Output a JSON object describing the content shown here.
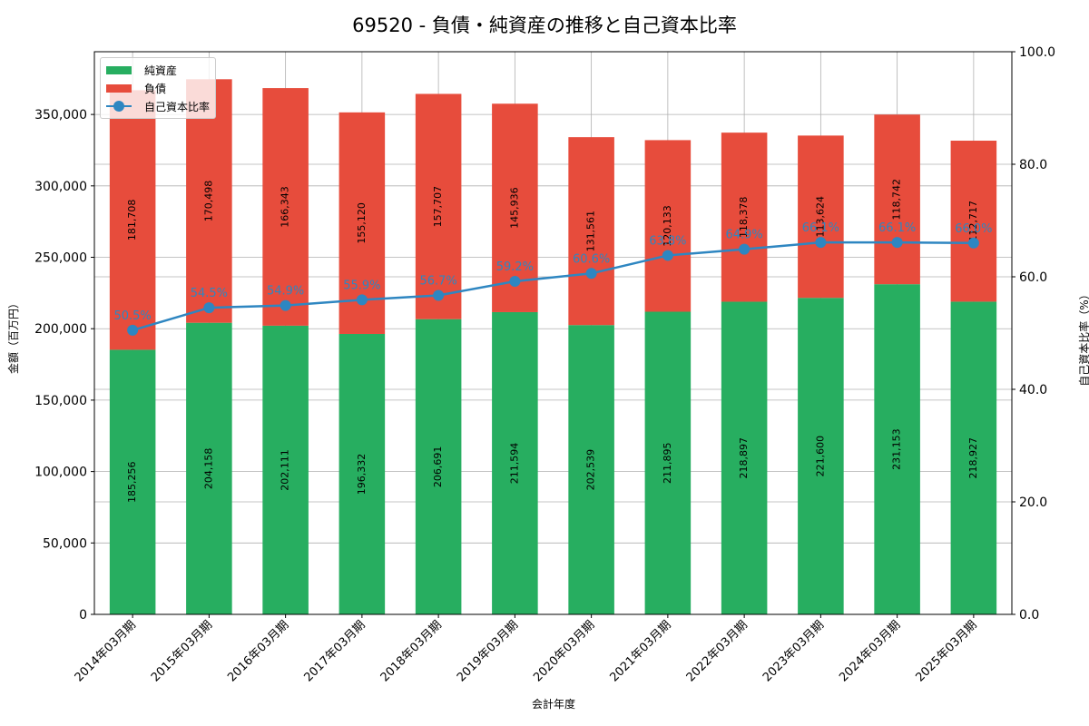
{
  "title": "69520 - 負債・純資産の推移と自己資本比率",
  "chart_data": {
    "type": "bar",
    "stacked": true,
    "title": "69520 - 負債・純資産の推移と自己資本比率",
    "xlabel": "会計年度",
    "ylabel": "金額（百万円）",
    "ylabel_right": "自己資本比率（%）",
    "ylim": [
      0,
      393918
    ],
    "ylim_right": [
      0,
      100
    ],
    "yticks": [
      0,
      50000,
      100000,
      150000,
      200000,
      250000,
      300000,
      350000
    ],
    "ytick_labels": [
      "0",
      "50,000",
      "100,000",
      "150,000",
      "200,000",
      "250,000",
      "300,000",
      "350,000"
    ],
    "yticks_right": [
      0,
      20,
      40,
      60,
      80,
      100
    ],
    "ytick_labels_right": [
      "0.0",
      "20.0",
      "40.0",
      "60.0",
      "80.0",
      "100.0"
    ],
    "grid": true,
    "legend_position": "upper left",
    "categories": [
      "2014年03月期",
      "2015年03月期",
      "2016年03月期",
      "2017年03月期",
      "2018年03月期",
      "2019年03月期",
      "2020年03月期",
      "2021年03月期",
      "2022年03月期",
      "2023年03月期",
      "2024年03月期",
      "2025年03月期"
    ],
    "series": [
      {
        "name": "純資産",
        "type": "bar",
        "color": "#27ae60",
        "values": [
          185256,
          204158,
          202111,
          196332,
          206691,
          211594,
          202539,
          211895,
          218897,
          221600,
          231153,
          218927
        ],
        "labels": [
          "185,256",
          "204,158",
          "202,111",
          "196,332",
          "206,691",
          "211,594",
          "202,539",
          "211,895",
          "218,897",
          "221,600",
          "231,153",
          "218,927"
        ]
      },
      {
        "name": "負債",
        "type": "bar",
        "color": "#e74c3c",
        "values": [
          181708,
          170498,
          166343,
          155120,
          157707,
          145936,
          131561,
          120133,
          118378,
          113624,
          118742,
          112717
        ],
        "labels": [
          "181,708",
          "170,498",
          "166,343",
          "155,120",
          "157,707",
          "145,936",
          "131,561",
          "120,133",
          "118,378",
          "113,624",
          "118,742",
          "112,717"
        ]
      },
      {
        "name": "自己資本比率",
        "type": "line",
        "axis": "right",
        "color": "#2e86c1",
        "values": [
          50.5,
          54.5,
          54.9,
          55.9,
          56.7,
          59.2,
          60.6,
          63.8,
          64.9,
          66.1,
          66.1,
          66.0
        ],
        "labels": [
          "50.5%",
          "54.5%",
          "54.9%",
          "55.9%",
          "56.7%",
          "59.2%",
          "60.6%",
          "63.8%",
          "64.9%",
          "66.1%",
          "66.1%",
          "66.0%"
        ]
      }
    ]
  },
  "legend": {
    "items": [
      {
        "label": "純資産",
        "color": "#27ae60"
      },
      {
        "label": "負債",
        "color": "#e74c3c"
      },
      {
        "label": "自己資本比率",
        "color": "#2e86c1"
      }
    ]
  }
}
